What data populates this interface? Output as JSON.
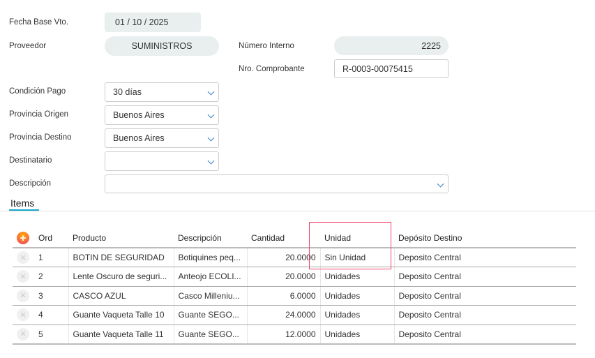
{
  "form": {
    "fecha_base_label": "Fecha Base Vto.",
    "fecha_base_value": "01 / 10 / 2025",
    "proveedor_label": "Proveedor",
    "proveedor_value": "SUMINISTROS",
    "numero_interno_label": "Número Interno",
    "numero_interno_value": "2225",
    "nro_comprobante_label": "Nro. Comprobante",
    "nro_comprobante_value": "R-0003-00075415",
    "condicion_pago_label": "Condición Pago",
    "condicion_pago_value": "30 días",
    "provincia_origen_label": "Provincia Origen",
    "provincia_origen_value": "Buenos Aires",
    "provincia_destino_label": "Provincia Destino",
    "provincia_destino_value": "Buenos Aires",
    "destinatario_label": "Destinatario",
    "destinatario_value": "",
    "descripcion_label": "Descripción",
    "descripcion_value": ""
  },
  "items_tab": "Items",
  "table": {
    "headers": [
      "Ord",
      "Producto",
      "Descripción",
      "Cantidad",
      "Unidad",
      "Depósito Destino"
    ],
    "rows": [
      {
        "ord": "1",
        "producto": "BOTIN DE SEGURIDAD",
        "descripcion": "Botiquines peq...",
        "cantidad": "20.0000",
        "unidad": "Sin Unidad",
        "deposito": "Deposito Central"
      },
      {
        "ord": "2",
        "producto": "Lente Oscuro de seguri...",
        "descripcion": "Anteojo ECOLI...",
        "cantidad": "20.0000",
        "unidad": "Unidades",
        "deposito": "Deposito Central"
      },
      {
        "ord": "3",
        "producto": "CASCO AZUL",
        "descripcion": "Casco Milleniu...",
        "cantidad": "6.0000",
        "unidad": "Unidades",
        "deposito": "Deposito Central"
      },
      {
        "ord": "4",
        "producto": "Guante Vaqueta Talle 10",
        "descripcion": "Guante SEGO...",
        "cantidad": "24.0000",
        "unidad": "Unidades",
        "deposito": "Deposito Central"
      },
      {
        "ord": "5",
        "producto": "Guante Vaqueta Talle 11",
        "descripcion": "Guante SEGO...",
        "cantidad": "12.0000",
        "unidad": "Unidades",
        "deposito": "Deposito Central"
      }
    ]
  },
  "icons": {
    "add": "plus-circle-icon",
    "remove": "x-circle-icon",
    "dropdown": "chevron-down-icon"
  },
  "colors": {
    "accent": "#17a9c8",
    "highlight": "#f0456a"
  }
}
